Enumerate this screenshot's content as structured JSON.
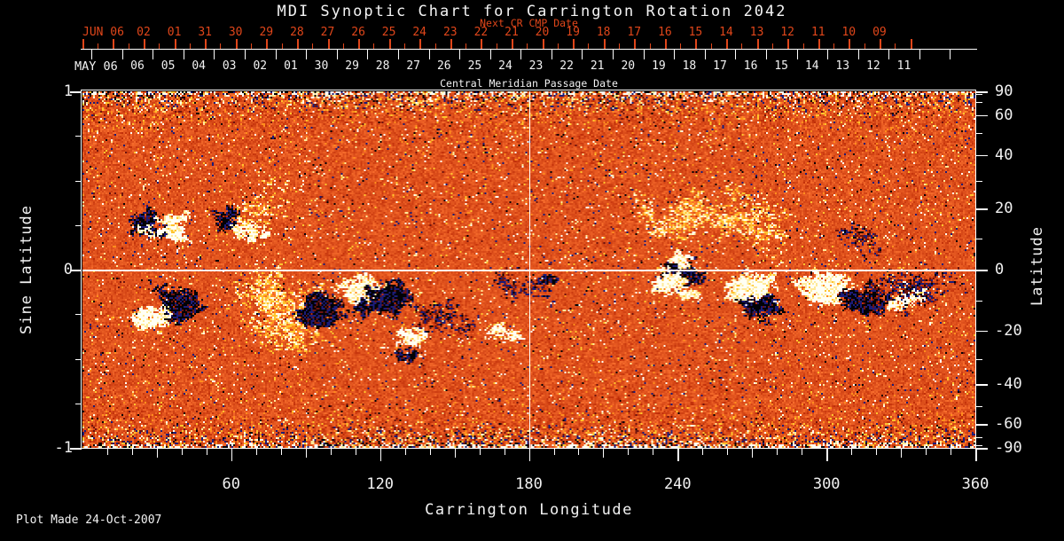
{
  "title": "MDI Synoptic Chart for Carrington Rotation 2042",
  "footer": "Plot Made 24-Oct-2007",
  "colors": {
    "background": "#000000",
    "axis": "#ffffff",
    "next_cr_axis": "#e0461a",
    "text": "#f2f2f2"
  },
  "axes": {
    "next_cr": {
      "title": "Next CR CMP Date",
      "month_marker": "JUN 06",
      "day_labels": [
        "02",
        "01",
        "31",
        "30",
        "29",
        "28",
        "27",
        "26",
        "25",
        "24",
        "23",
        "22",
        "21",
        "20",
        "19",
        "18",
        "17",
        "16",
        "15",
        "14",
        "13",
        "12",
        "11",
        "10",
        "09"
      ]
    },
    "cmp": {
      "title": "Central Meridian Passage Date",
      "month_marker": "MAY 06",
      "day_labels": [
        "06",
        "05",
        "04",
        "03",
        "02",
        "01",
        "30",
        "29",
        "28",
        "27",
        "26",
        "25",
        "24",
        "23",
        "22",
        "21",
        "20",
        "19",
        "18",
        "17",
        "16",
        "15",
        "14",
        "13",
        "12",
        "11"
      ]
    },
    "left": {
      "title": "Sine Latitude",
      "major_ticks": [
        1,
        0,
        -1
      ],
      "minor_ticks": [
        0.75,
        0.5,
        0.25,
        -0.25,
        -0.5,
        -0.75
      ]
    },
    "right": {
      "title": "Latitude",
      "major_ticks": [
        90,
        60,
        40,
        20,
        0,
        -20,
        -40,
        -60,
        -90
      ],
      "minor_ticks": [
        80,
        70,
        50,
        30,
        10,
        -10,
        -30,
        -50,
        -70,
        -80
      ]
    },
    "bottom": {
      "title": "Carrington Longitude",
      "major_ticks": [
        60,
        120,
        180,
        240,
        300,
        360
      ],
      "minor_step_deg": 10
    }
  },
  "chart_data": {
    "type": "heatmap",
    "title": "MDI Synoptic Chart for Carrington Rotation 2042",
    "xlabel": "Carrington Longitude",
    "ylabel_left": "Sine Latitude",
    "ylabel_right": "Latitude",
    "xlim": [
      0,
      360
    ],
    "ylim_sine": [
      -1,
      1
    ],
    "grid": false,
    "crosshair": {
      "longitude_line": 180,
      "latitude_line": 0
    },
    "field": "Line-of-sight photospheric magnetic field: orange/red quiet-sun noise, white/yellow positive polarity, black/navy negative polarity, noise amplified toward both poles",
    "palette": {
      "quiet_low": "#bc2a06",
      "quiet_high": "#fa702e",
      "positive_weak": "#ff8e1e",
      "positive_mid": "#ffc42e",
      "positive_pale": "#ffea9a",
      "positive_strong": "#fffff4",
      "negative_weak": "#6e140e",
      "negative_mid": "#1c1c78",
      "negative_strong": "#020206"
    },
    "noise": {
      "equator_amplitude": 0.34,
      "pole_boost": 1.15,
      "spike_pos_prob": 0.055,
      "spike_neg_prob": 0.03,
      "seed": 20421
    },
    "active_regions": [
      {
        "longitude": 27,
        "sine_latitude": 0.26,
        "polarity": "negative",
        "size": 20
      },
      {
        "longitude": 37,
        "sine_latitude": 0.25,
        "polarity": "positive",
        "size": 17
      },
      {
        "longitude": 60,
        "sine_latitude": 0.285,
        "polarity": "negative",
        "size": 13
      },
      {
        "longitude": 66,
        "sine_latitude": 0.24,
        "polarity": "positive",
        "size": 12
      },
      {
        "longitude": 77,
        "sine_latitude": 0.37,
        "polarity": "positive",
        "size": 11,
        "scatter": true
      },
      {
        "longitude": 30,
        "sine_latitude": -0.27,
        "polarity": "positive",
        "size": 22
      },
      {
        "longitude": 39,
        "sine_latitude": -0.2,
        "polarity": "negative",
        "size": 26
      },
      {
        "longitude": 79,
        "sine_latitude": -0.13,
        "polarity": "positive",
        "size": 20,
        "scatter": true
      },
      {
        "longitude": 84,
        "sine_latitude": -0.3,
        "polarity": "positive",
        "size": 22,
        "scatter": true
      },
      {
        "longitude": 95,
        "sine_latitude": -0.22,
        "polarity": "negative",
        "size": 30
      },
      {
        "longitude": 112,
        "sine_latitude": -0.11,
        "polarity": "positive",
        "size": 24
      },
      {
        "longitude": 122,
        "sine_latitude": -0.16,
        "polarity": "negative",
        "size": 28
      },
      {
        "longitude": 134,
        "sine_latitude": -0.36,
        "polarity": "positive",
        "size": 12
      },
      {
        "longitude": 133,
        "sine_latitude": -0.46,
        "polarity": "negative",
        "size": 8
      },
      {
        "longitude": 144,
        "sine_latitude": -0.26,
        "polarity": "negative",
        "size": 13,
        "scatter": true
      },
      {
        "longitude": 170,
        "sine_latitude": -0.12,
        "polarity": "negative",
        "size": 11,
        "scatter": true
      },
      {
        "longitude": 167,
        "sine_latitude": -0.37,
        "polarity": "positive",
        "size": 10
      },
      {
        "longitude": 188,
        "sine_latitude": -0.04,
        "polarity": "negative",
        "size": 7
      },
      {
        "longitude": 233,
        "sine_latitude": 0.25,
        "polarity": "positive",
        "size": 11,
        "scatter": true
      },
      {
        "longitude": 246,
        "sine_latitude": 0.31,
        "polarity": "positive",
        "size": 15,
        "scatter": true
      },
      {
        "longitude": 262,
        "sine_latitude": 0.33,
        "polarity": "positive",
        "size": 15,
        "scatter": true
      },
      {
        "longitude": 277,
        "sine_latitude": 0.22,
        "polarity": "positive",
        "size": 13,
        "scatter": true
      },
      {
        "longitude": 241,
        "sine_latitude": -0.02,
        "polarity": "negative",
        "size": 23
      },
      {
        "longitude": 235,
        "sine_latitude": -0.08,
        "polarity": "positive",
        "size": 19
      },
      {
        "longitude": 240,
        "sine_latitude": 0.06,
        "polarity": "positive",
        "size": 9
      },
      {
        "longitude": 270,
        "sine_latitude": -0.1,
        "polarity": "positive",
        "size": 25
      },
      {
        "longitude": 274,
        "sine_latitude": -0.2,
        "polarity": "negative",
        "size": 19
      },
      {
        "longitude": 301,
        "sine_latitude": -0.12,
        "polarity": "positive",
        "size": 28
      },
      {
        "longitude": 316,
        "sine_latitude": -0.15,
        "polarity": "negative",
        "size": 24
      },
      {
        "longitude": 308,
        "sine_latitude": 0.12,
        "polarity": "negative",
        "size": 9,
        "scatter": true
      },
      {
        "longitude": 336,
        "sine_latitude": -0.13,
        "polarity": "positive",
        "size": 14
      },
      {
        "longitude": 326,
        "sine_latitude": -0.1,
        "polarity": "negative",
        "size": 11,
        "scatter": true
      },
      {
        "longitude": 343,
        "sine_latitude": -0.14,
        "polarity": "negative",
        "size": 12,
        "scatter": true
      },
      {
        "longitude": 330,
        "sine_latitude": -0.21,
        "polarity": "positive",
        "size": 7
      }
    ]
  }
}
